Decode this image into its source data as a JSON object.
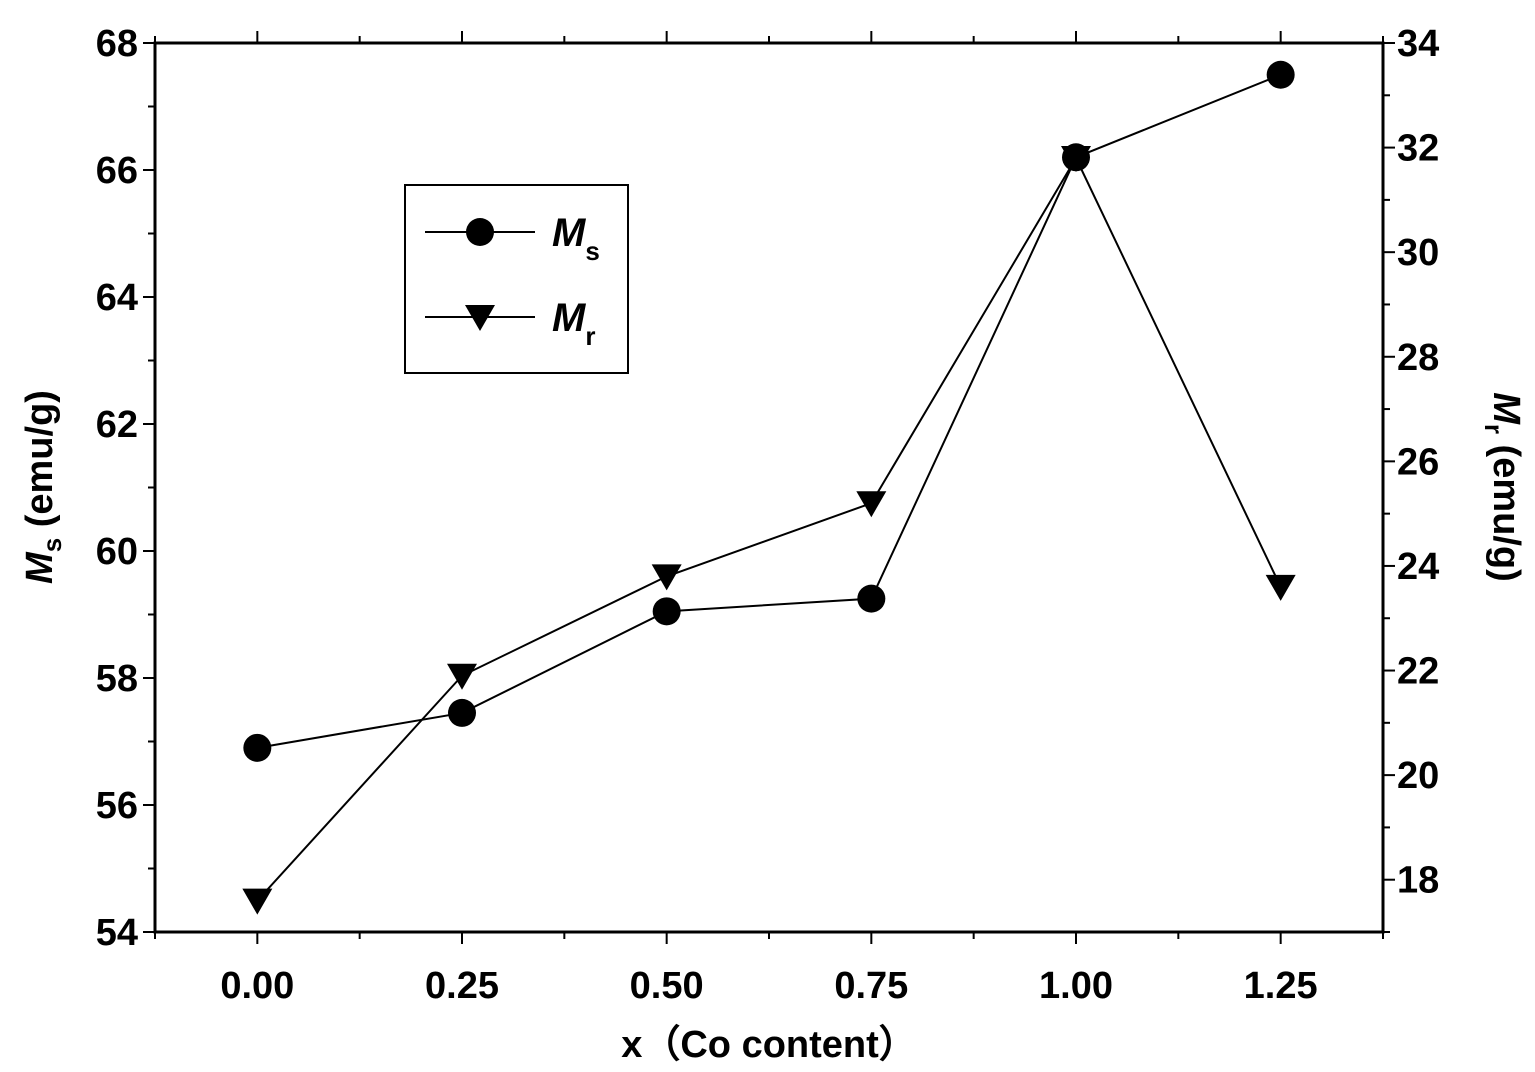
{
  "chart_data": {
    "type": "line",
    "x": [
      0.0,
      0.25,
      0.5,
      0.75,
      1.0,
      1.25
    ],
    "xticks": [
      "0.00",
      "0.25",
      "0.50",
      "0.75",
      "1.00",
      "1.25"
    ],
    "xlim": [
      -0.125,
      1.375
    ],
    "xlabel": "x（Co content）",
    "left_axis": {
      "label_main": "M",
      "label_sub": "s",
      "label_unit": " (emu/g)",
      "ylim": [
        54,
        68
      ],
      "ticks": [
        "54",
        "56",
        "58",
        "60",
        "62",
        "64",
        "66",
        "68"
      ]
    },
    "right_axis": {
      "label_main": "M",
      "label_sub": "r",
      "label_unit": " (emu/g)",
      "ylim": [
        17,
        34
      ],
      "ticks": [
        "18",
        "20",
        "22",
        "24",
        "26",
        "28",
        "30",
        "32",
        "34"
      ]
    },
    "series": [
      {
        "name_main": "M",
        "name_sub": "s",
        "axis": "left",
        "marker": "circle",
        "values": [
          56.9,
          57.45,
          59.05,
          59.25,
          66.2,
          67.5
        ]
      },
      {
        "name_main": "M",
        "name_sub": "r",
        "axis": "right",
        "marker": "triangle-down",
        "values": [
          17.6,
          21.9,
          23.8,
          25.2,
          31.8,
          23.6
        ]
      }
    ],
    "legend_position": "upper-left",
    "grid": false,
    "color": "#000000"
  }
}
